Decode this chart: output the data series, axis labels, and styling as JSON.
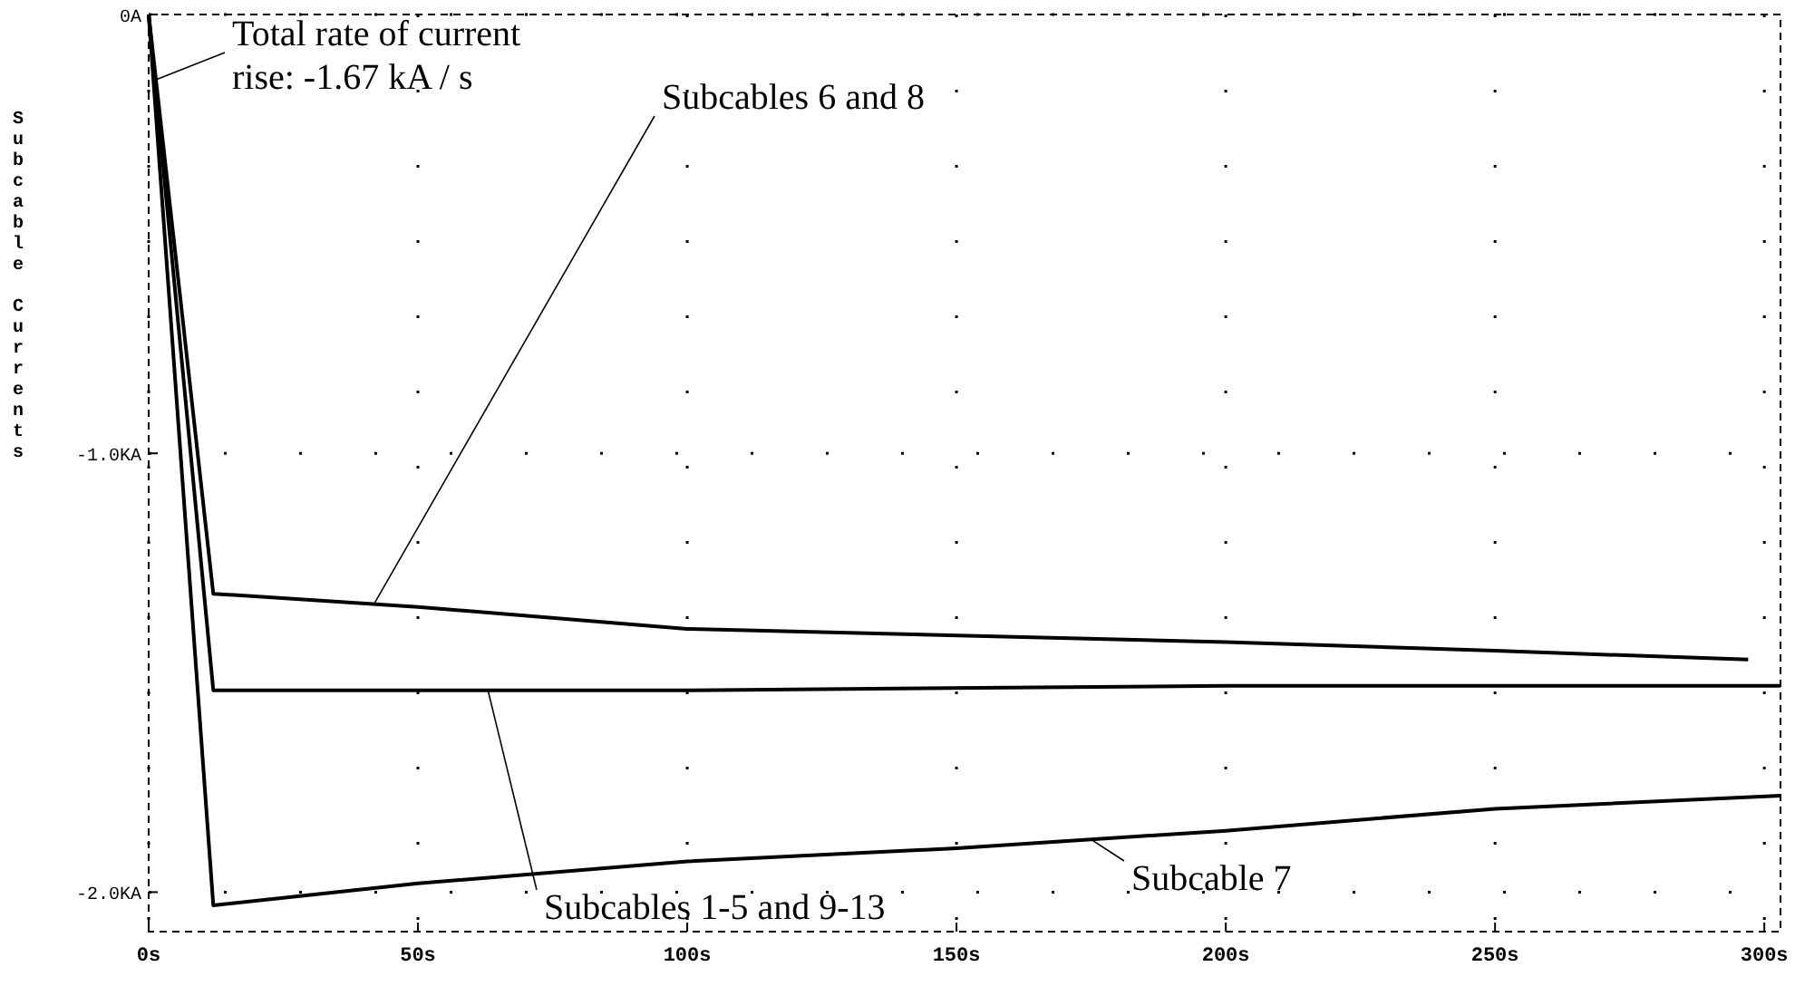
{
  "chart_data": {
    "type": "line",
    "ylabel": "Subcable Currents",
    "xlim": [
      0,
      303
    ],
    "ylim": [
      -2.09,
      0
    ],
    "xticks": [
      {
        "value": 0,
        "label": "0s"
      },
      {
        "value": 50,
        "label": "50s"
      },
      {
        "value": 100,
        "label": "100s"
      },
      {
        "value": 150,
        "label": "150s"
      },
      {
        "value": 200,
        "label": "200s"
      },
      {
        "value": 250,
        "label": "250s"
      },
      {
        "value": 300,
        "label": "300s"
      }
    ],
    "yticks": [
      {
        "value": 0,
        "label": "0A"
      },
      {
        "value": -1,
        "label": "-1.0KA"
      },
      {
        "value": -2,
        "label": "-2.0KA"
      }
    ],
    "series": [
      {
        "color": "#000000",
        "x": [
          0,
          12,
          50,
          100,
          200,
          250,
          297
        ],
        "values": [
          0,
          -1.32,
          -1.35,
          -1.4,
          -1.43,
          -1.45,
          -1.47
        ]
      },
      {
        "color": "#000000",
        "x": [
          0,
          12,
          100,
          200,
          303
        ],
        "values": [
          0,
          -1.54,
          -1.54,
          -1.53,
          -1.53
        ]
      },
      {
        "color": "#000000",
        "x": [
          0,
          12,
          50,
          100,
          150,
          200,
          250,
          303
        ],
        "values": [
          0,
          -2.03,
          -1.98,
          -1.93,
          -1.9,
          -1.86,
          -1.81,
          -1.78
        ]
      }
    ],
    "annotations": [
      {
        "text": "Total rate of current\nrise: -1.67 kA / s",
        "x": 1,
        "y": -0.15
      },
      {
        "text": "Subcables 6 and 8",
        "x": 42,
        "y": -1.34
      },
      {
        "text": "Subcables 1-5 and 9-13",
        "x": 63,
        "y": -1.54
      },
      {
        "text": "Subcable 7",
        "x": 175,
        "y": -1.88
      }
    ],
    "grid": true,
    "line_style": "solid",
    "marker": "none"
  }
}
